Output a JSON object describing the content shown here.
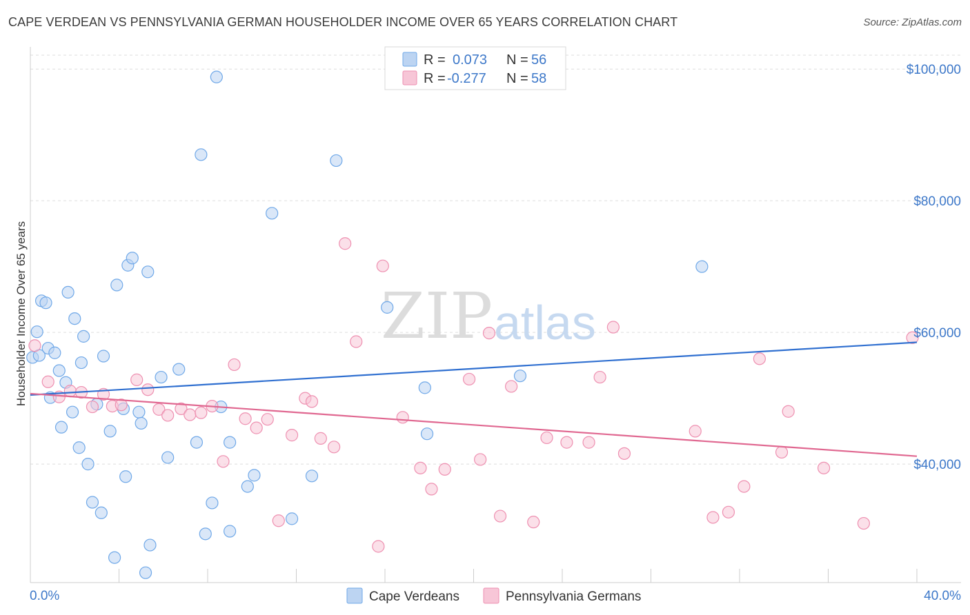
{
  "header": {
    "title": "CAPE VERDEAN VS PENNSYLVANIA GERMAN HOUSEHOLDER INCOME OVER 65 YEARS CORRELATION CHART",
    "source": "Source: ZipAtlas.com"
  },
  "watermark": {
    "zip": "ZIP",
    "atlas": "atlas"
  },
  "legend": {
    "r_label": "R =",
    "n_label": "N =",
    "entries": [
      {
        "r": "0.073",
        "n": "56"
      },
      {
        "r": "-0.277",
        "n": "58"
      }
    ]
  },
  "chart_data": {
    "type": "scatter",
    "title": "CAPE VERDEAN VS PENNSYLVANIA GERMAN HOUSEHOLDER INCOME OVER 65 YEARS CORRELATION CHART",
    "xlabel": "",
    "ylabel": "Householder Income Over 65 years",
    "xlim": [
      0,
      40
    ],
    "ylim": [
      22000,
      104000
    ],
    "x_tick_labels": [
      "0.0%",
      "40.0%"
    ],
    "y_ticks": [
      40000,
      60000,
      80000,
      100000
    ],
    "y_tick_labels": [
      "$40,000",
      "$60,000",
      "$80,000",
      "$100,000"
    ],
    "grid": true,
    "legend_position": "top-center",
    "colors": {
      "cape_verdeans": "#6fa8e8",
      "cape_verdeans_fill": "#bcd4f2",
      "cape_verdeans_line": "#2f6fd0",
      "pennsylvania_germans": "#ee8fb0",
      "pennsylvania_germans_fill": "#f7c6d7",
      "pennsylvania_germans_line": "#e06790"
    },
    "series": [
      {
        "name": "Cape Verdeans",
        "r": 0.073,
        "n": 56,
        "trend": {
          "x": [
            0,
            40
          ],
          "y": [
            50500,
            58500
          ]
        },
        "points": [
          [
            0.1,
            56200
          ],
          [
            0.3,
            60100
          ],
          [
            0.4,
            56500
          ],
          [
            0.5,
            64800
          ],
          [
            0.7,
            64500
          ],
          [
            0.8,
            57600
          ],
          [
            0.9,
            50100
          ],
          [
            1.1,
            56900
          ],
          [
            1.3,
            54200
          ],
          [
            1.4,
            45600
          ],
          [
            1.6,
            52400
          ],
          [
            1.7,
            66100
          ],
          [
            1.9,
            47900
          ],
          [
            2.0,
            62100
          ],
          [
            2.2,
            42500
          ],
          [
            2.3,
            55400
          ],
          [
            2.4,
            59400
          ],
          [
            2.6,
            40000
          ],
          [
            2.8,
            34200
          ],
          [
            3.0,
            49100
          ],
          [
            3.2,
            32600
          ],
          [
            3.3,
            56400
          ],
          [
            3.6,
            45000
          ],
          [
            3.8,
            25800
          ],
          [
            3.9,
            67200
          ],
          [
            4.2,
            48400
          ],
          [
            4.3,
            38100
          ],
          [
            4.4,
            70200
          ],
          [
            4.6,
            71300
          ],
          [
            4.9,
            47900
          ],
          [
            5.0,
            46200
          ],
          [
            5.2,
            23500
          ],
          [
            5.4,
            27700
          ],
          [
            5.3,
            69200
          ],
          [
            5.9,
            53200
          ],
          [
            6.2,
            41000
          ],
          [
            6.7,
            54400
          ],
          [
            7.5,
            43300
          ],
          [
            7.7,
            87000
          ],
          [
            7.9,
            29400
          ],
          [
            8.2,
            34100
          ],
          [
            8.4,
            98800
          ],
          [
            8.6,
            48700
          ],
          [
            9.0,
            29800
          ],
          [
            9.0,
            43300
          ],
          [
            9.8,
            36600
          ],
          [
            10.1,
            38300
          ],
          [
            10.9,
            78100
          ],
          [
            11.8,
            31700
          ],
          [
            12.7,
            38200
          ],
          [
            13.8,
            86100
          ],
          [
            16.1,
            63800
          ],
          [
            17.8,
            51600
          ],
          [
            17.9,
            44600
          ],
          [
            22.1,
            53400
          ],
          [
            30.3,
            70000
          ]
        ]
      },
      {
        "name": "Pennsylvania Germans",
        "r": -0.277,
        "n": 58,
        "trend": {
          "x": [
            0,
            40
          ],
          "y": [
            50700,
            41200
          ]
        },
        "points": [
          [
            0.2,
            58000
          ],
          [
            0.8,
            52500
          ],
          [
            1.3,
            50200
          ],
          [
            1.8,
            51100
          ],
          [
            2.3,
            50900
          ],
          [
            2.8,
            48700
          ],
          [
            3.3,
            50600
          ],
          [
            3.7,
            48800
          ],
          [
            4.1,
            49000
          ],
          [
            4.8,
            52800
          ],
          [
            5.3,
            51300
          ],
          [
            5.8,
            48300
          ],
          [
            6.2,
            47400
          ],
          [
            6.8,
            48400
          ],
          [
            7.2,
            47500
          ],
          [
            7.7,
            47800
          ],
          [
            8.2,
            48800
          ],
          [
            8.7,
            40400
          ],
          [
            9.2,
            55100
          ],
          [
            9.7,
            46900
          ],
          [
            10.2,
            45500
          ],
          [
            10.7,
            46800
          ],
          [
            11.2,
            31400
          ],
          [
            11.8,
            44400
          ],
          [
            12.4,
            50000
          ],
          [
            12.7,
            49500
          ],
          [
            13.1,
            43900
          ],
          [
            13.7,
            42600
          ],
          [
            14.2,
            73500
          ],
          [
            14.7,
            58600
          ],
          [
            15.7,
            27500
          ],
          [
            15.9,
            70100
          ],
          [
            16.8,
            47100
          ],
          [
            17.6,
            39400
          ],
          [
            18.1,
            36200
          ],
          [
            18.7,
            39200
          ],
          [
            19.8,
            52900
          ],
          [
            20.3,
            40700
          ],
          [
            20.7,
            59900
          ],
          [
            21.2,
            32100
          ],
          [
            21.7,
            51800
          ],
          [
            22.7,
            31200
          ],
          [
            23.3,
            44000
          ],
          [
            24.2,
            43300
          ],
          [
            25.2,
            43300
          ],
          [
            25.7,
            53200
          ],
          [
            26.3,
            60800
          ],
          [
            26.8,
            41600
          ],
          [
            30.0,
            45000
          ],
          [
            30.8,
            31900
          ],
          [
            31.5,
            32700
          ],
          [
            32.2,
            36600
          ],
          [
            32.9,
            56000
          ],
          [
            33.9,
            41800
          ],
          [
            34.2,
            48000
          ],
          [
            35.8,
            39400
          ],
          [
            37.6,
            31000
          ],
          [
            39.8,
            59200
          ]
        ]
      }
    ]
  },
  "bottom_legend": {
    "items": [
      {
        "label": "Cape Verdeans"
      },
      {
        "label": "Pennsylvania Germans"
      }
    ]
  }
}
